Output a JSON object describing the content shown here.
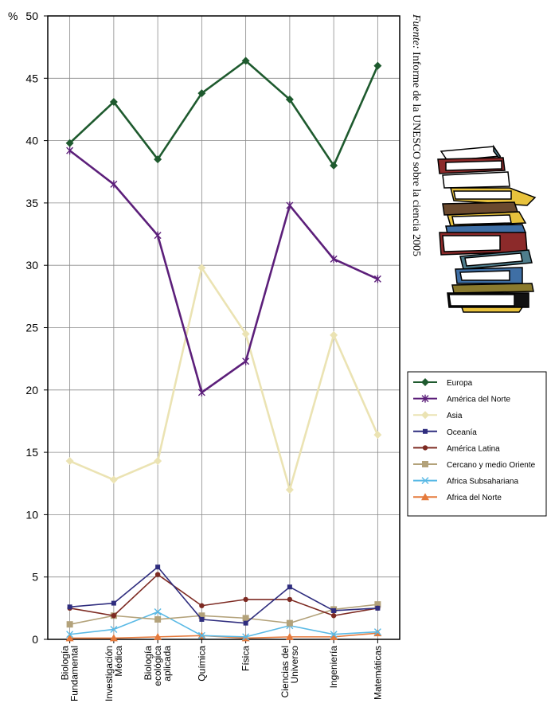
{
  "chart_data": {
    "type": "line",
    "y_unit_label": "%",
    "ylim": [
      0,
      50
    ],
    "y_ticks": [
      "0",
      "5",
      "10",
      "15",
      "20",
      "25",
      "30",
      "35",
      "40",
      "45",
      "50"
    ],
    "y_tick_values": [
      0,
      5,
      10,
      15,
      20,
      25,
      30,
      35,
      40,
      45,
      50
    ],
    "grid": true,
    "legend_position": "right",
    "categories": [
      [
        "Biología",
        "Fundamental"
      ],
      [
        "Investigación",
        "Médica"
      ],
      [
        "Biología",
        "ecológica",
        "aplicada"
      ],
      [
        "Química"
      ],
      [
        "Física"
      ],
      [
        "Ciencias del",
        "Universo"
      ],
      [
        "Ingeniería"
      ],
      [
        "Matemáticas"
      ]
    ],
    "series": [
      {
        "name": "Europa",
        "color": "#1e5a2e",
        "marker": "diamond",
        "values": [
          39.8,
          43.1,
          38.5,
          43.8,
          46.4,
          43.3,
          38.0,
          46.0
        ]
      },
      {
        "name": "América del Norte",
        "color": "#5c1f7a",
        "marker": "asterisk",
        "values": [
          39.2,
          36.5,
          32.4,
          19.8,
          22.3,
          34.8,
          30.5,
          28.9
        ]
      },
      {
        "name": "Asia",
        "color": "#ebe3b3",
        "marker": "diamond",
        "values": [
          14.3,
          12.8,
          14.3,
          29.8,
          24.5,
          12.0,
          24.4,
          16.4
        ]
      },
      {
        "name": "Oceanía",
        "color": "#2f2d7e",
        "marker": "square-small",
        "values": [
          2.6,
          2.9,
          5.8,
          1.6,
          1.3,
          4.2,
          2.3,
          2.5
        ]
      },
      {
        "name": "América Latina",
        "color": "#7d2a22",
        "marker": "circle",
        "values": [
          2.5,
          1.9,
          5.2,
          2.7,
          3.2,
          3.2,
          1.9,
          2.5
        ]
      },
      {
        "name": "Cercano y medio Oriente",
        "color": "#b3a27a",
        "marker": "square",
        "values": [
          1.2,
          1.9,
          1.6,
          1.9,
          1.7,
          1.3,
          2.4,
          2.8
        ]
      },
      {
        "name": "Africa Subsahariana",
        "color": "#59b9e5",
        "marker": "x",
        "values": [
          0.4,
          0.8,
          2.2,
          0.3,
          0.2,
          1.1,
          0.4,
          0.6
        ]
      },
      {
        "name": "Africa del Norte",
        "color": "#e57a3c",
        "marker": "triangle",
        "values": [
          0.1,
          0.1,
          0.2,
          0.3,
          0.1,
          0.2,
          0.2,
          0.5
        ]
      }
    ]
  },
  "source": {
    "prefix": "Fuente:",
    "text": " Informe de la UNESCO sobre la ciencia 2005"
  },
  "decoration": {
    "icon": "stack-of-books-icon",
    "colors": [
      "#4e7d8c",
      "#8c2a2a",
      "#e8c23c",
      "#6b4a2e",
      "#3f6fa5",
      "#8a7a2e",
      "#111111"
    ]
  }
}
